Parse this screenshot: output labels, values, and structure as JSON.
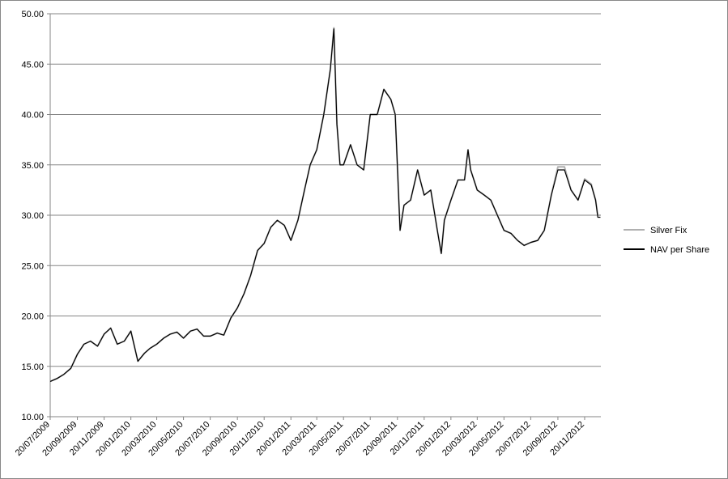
{
  "chart_data": {
    "type": "line",
    "x": [
      "2009-07-20",
      "2009-08-05",
      "2009-08-20",
      "2009-09-05",
      "2009-09-20",
      "2009-10-05",
      "2009-10-20",
      "2009-11-05",
      "2009-11-20",
      "2009-12-05",
      "2009-12-20",
      "2010-01-05",
      "2010-01-20",
      "2010-02-05",
      "2010-02-20",
      "2010-03-05",
      "2010-03-20",
      "2010-04-05",
      "2010-04-20",
      "2010-05-05",
      "2010-05-20",
      "2010-06-05",
      "2010-06-20",
      "2010-07-05",
      "2010-07-20",
      "2010-08-05",
      "2010-08-20",
      "2010-09-05",
      "2010-09-20",
      "2010-10-05",
      "2010-10-20",
      "2010-11-05",
      "2010-11-20",
      "2010-12-05",
      "2010-12-20",
      "2011-01-05",
      "2011-01-20",
      "2011-02-05",
      "2011-02-20",
      "2011-03-05",
      "2011-03-20",
      "2011-04-05",
      "2011-04-20",
      "2011-04-28",
      "2011-05-05",
      "2011-05-12",
      "2011-05-20",
      "2011-06-05",
      "2011-06-20",
      "2011-07-05",
      "2011-07-20",
      "2011-08-05",
      "2011-08-20",
      "2011-09-05",
      "2011-09-15",
      "2011-09-26",
      "2011-10-05",
      "2011-10-20",
      "2011-11-05",
      "2011-11-20",
      "2011-12-05",
      "2011-12-20",
      "2011-12-29",
      "2012-01-05",
      "2012-01-20",
      "2012-02-05",
      "2012-02-20",
      "2012-02-28",
      "2012-03-05",
      "2012-03-20",
      "2012-04-05",
      "2012-04-20",
      "2012-05-05",
      "2012-05-20",
      "2012-06-05",
      "2012-06-20",
      "2012-07-05",
      "2012-07-20",
      "2012-08-05",
      "2012-08-20",
      "2012-09-05",
      "2012-09-20",
      "2012-10-05",
      "2012-10-20",
      "2012-11-05",
      "2012-11-20",
      "2012-12-05",
      "2012-12-15",
      "2012-12-20",
      "2012-12-26"
    ],
    "series": [
      {
        "name": "Silver Fix",
        "color": "#b0b0b0",
        "values": [
          13.5,
          13.8,
          14.2,
          14.8,
          16.2,
          17.2,
          17.5,
          17.0,
          18.2,
          18.8,
          17.2,
          17.5,
          18.5,
          15.5,
          16.3,
          16.8,
          17.2,
          17.8,
          18.2,
          18.4,
          17.8,
          18.5,
          18.7,
          18.0,
          18.0,
          18.3,
          18.1,
          19.8,
          20.8,
          22.2,
          24.0,
          26.5,
          27.2,
          28.8,
          29.5,
          29.0,
          27.5,
          29.5,
          32.5,
          35.0,
          36.5,
          40.0,
          44.5,
          48.6,
          39.0,
          35.0,
          35.0,
          37.0,
          35.0,
          34.5,
          40.0,
          40.0,
          42.5,
          41.5,
          40.0,
          28.5,
          31.0,
          31.5,
          34.5,
          32.0,
          32.5,
          28.5,
          26.2,
          29.5,
          31.5,
          33.5,
          33.5,
          36.5,
          34.5,
          32.5,
          32.0,
          31.5,
          30.0,
          28.5,
          28.2,
          27.5,
          27.0,
          27.3,
          27.5,
          28.5,
          32.0,
          34.8,
          34.8,
          32.5,
          31.5,
          33.6,
          33.1,
          31.5,
          30.0,
          30.0
        ]
      },
      {
        "name": "NAV per Share",
        "color": "#000000",
        "values": [
          13.5,
          13.8,
          14.2,
          14.8,
          16.2,
          17.2,
          17.5,
          17.0,
          18.2,
          18.8,
          17.2,
          17.5,
          18.5,
          15.5,
          16.3,
          16.8,
          17.2,
          17.8,
          18.2,
          18.4,
          17.8,
          18.5,
          18.7,
          18.0,
          18.0,
          18.3,
          18.1,
          19.8,
          20.8,
          22.2,
          24.0,
          26.5,
          27.2,
          28.8,
          29.5,
          29.0,
          27.5,
          29.5,
          32.5,
          35.0,
          36.5,
          40.0,
          44.5,
          48.5,
          39.0,
          35.0,
          35.0,
          37.0,
          35.0,
          34.5,
          40.0,
          40.0,
          42.5,
          41.5,
          40.0,
          28.5,
          31.0,
          31.5,
          34.5,
          32.0,
          32.5,
          28.5,
          26.2,
          29.5,
          31.5,
          33.5,
          33.5,
          36.5,
          34.5,
          32.5,
          32.0,
          31.5,
          30.0,
          28.5,
          28.2,
          27.5,
          27.0,
          27.3,
          27.5,
          28.5,
          32.0,
          34.5,
          34.5,
          32.5,
          31.5,
          33.5,
          33.0,
          31.5,
          29.8,
          29.8
        ]
      }
    ],
    "xlim": [
      "2009-07-20",
      "2012-12-27"
    ],
    "xticks": [
      {
        "value": "2009-07-20",
        "label": "20/07/2009"
      },
      {
        "value": "2009-09-20",
        "label": "20/09/2009"
      },
      {
        "value": "2009-11-20",
        "label": "20/11/2009"
      },
      {
        "value": "2010-01-20",
        "label": "20/01/2010"
      },
      {
        "value": "2010-03-20",
        "label": "20/03/2010"
      },
      {
        "value": "2010-05-20",
        "label": "20/05/2010"
      },
      {
        "value": "2010-07-20",
        "label": "20/07/2010"
      },
      {
        "value": "2010-09-20",
        "label": "20/09/2010"
      },
      {
        "value": "2010-11-20",
        "label": "20/11/2010"
      },
      {
        "value": "2011-01-20",
        "label": "20/01/2011"
      },
      {
        "value": "2011-03-20",
        "label": "20/03/2011"
      },
      {
        "value": "2011-05-20",
        "label": "20/05/2011"
      },
      {
        "value": "2011-07-20",
        "label": "20/07/2011"
      },
      {
        "value": "2011-09-20",
        "label": "20/09/2011"
      },
      {
        "value": "2011-11-20",
        "label": "20/11/2011"
      },
      {
        "value": "2012-01-20",
        "label": "20/01/2012"
      },
      {
        "value": "2012-03-20",
        "label": "20/03/2012"
      },
      {
        "value": "2012-05-20",
        "label": "20/05/2012"
      },
      {
        "value": "2012-07-20",
        "label": "20/07/2012"
      },
      {
        "value": "2012-09-20",
        "label": "20/09/2012"
      },
      {
        "value": "2012-11-20",
        "label": "20/11/2012"
      }
    ],
    "ylim": [
      10,
      50
    ],
    "yticks": [
      {
        "value": 10,
        "label": "10.00"
      },
      {
        "value": 15,
        "label": "15.00"
      },
      {
        "value": 20,
        "label": "20.00"
      },
      {
        "value": 25,
        "label": "25.00"
      },
      {
        "value": 30,
        "label": "30.00"
      },
      {
        "value": 35,
        "label": "35.00"
      },
      {
        "value": 40,
        "label": "40.00"
      },
      {
        "value": 45,
        "label": "45.00"
      },
      {
        "value": 50,
        "label": "50.00"
      }
    ],
    "grid": true,
    "legend": "right"
  }
}
